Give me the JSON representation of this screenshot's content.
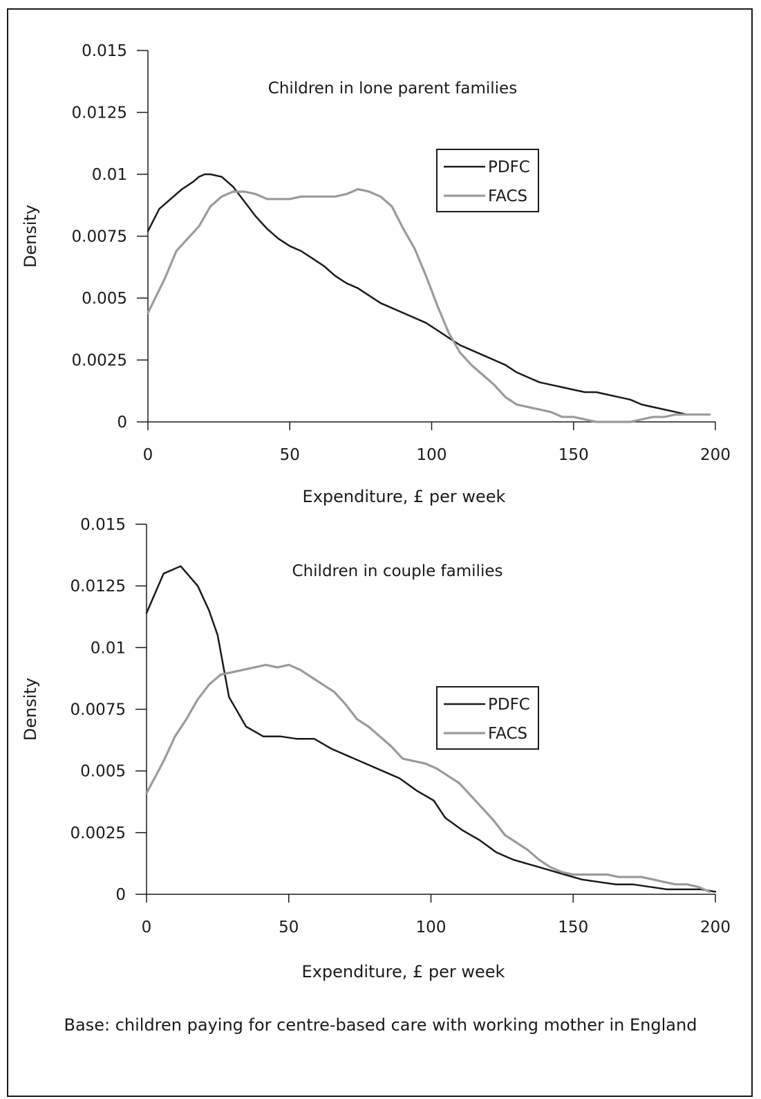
{
  "chart_data": [
    {
      "type": "line",
      "title": "Children in lone parent families",
      "xlabel": "Expenditure, £ per week",
      "ylabel": "Density",
      "xlim": [
        0,
        200
      ],
      "ylim": [
        0,
        0.015
      ],
      "xticks": [
        "0",
        "50",
        "100",
        "150",
        "200"
      ],
      "yticks": [
        "0",
        "0.0025",
        "0.005",
        "0.0075",
        "0.01",
        "0.0125",
        "0.015"
      ],
      "legend": "right",
      "grid": false,
      "series": [
        {
          "name": "PDFC",
          "color": "#1a1a1a",
          "x": [
            0,
            4,
            8,
            12,
            16,
            18,
            20,
            22,
            26,
            30,
            34,
            38,
            42,
            46,
            50,
            54,
            58,
            62,
            66,
            70,
            74,
            78,
            82,
            86,
            90,
            94,
            98,
            102,
            106,
            110,
            114,
            118,
            122,
            126,
            130,
            134,
            138,
            142,
            146,
            150,
            154,
            158,
            162,
            166,
            170,
            174,
            178,
            182,
            186,
            190
          ],
          "y": [
            0.0077,
            0.0086,
            0.009,
            0.0094,
            0.0097,
            0.0099,
            0.01,
            0.01,
            0.0099,
            0.0095,
            0.0089,
            0.0083,
            0.0078,
            0.0074,
            0.0071,
            0.0069,
            0.0066,
            0.0063,
            0.0059,
            0.0056,
            0.0054,
            0.0051,
            0.0048,
            0.0046,
            0.0044,
            0.0042,
            0.004,
            0.0037,
            0.0034,
            0.0031,
            0.0029,
            0.0027,
            0.0025,
            0.0023,
            0.002,
            0.0018,
            0.0016,
            0.0015,
            0.0014,
            0.0013,
            0.0012,
            0.0012,
            0.0011,
            0.001,
            0.0009,
            0.0007,
            0.0006,
            0.0005,
            0.0004,
            0.0003
          ]
        },
        {
          "name": "FACS",
          "color": "#9a9a9a",
          "x": [
            0,
            6,
            10,
            14,
            18,
            22,
            26,
            30,
            34,
            38,
            42,
            46,
            50,
            54,
            58,
            62,
            66,
            70,
            74,
            78,
            82,
            86,
            90,
            94,
            98,
            102,
            106,
            110,
            114,
            118,
            122,
            126,
            130,
            134,
            138,
            142,
            146,
            150,
            154,
            158,
            162,
            166,
            170,
            174,
            178,
            182,
            186,
            190,
            194,
            198
          ],
          "y": [
            0.0044,
            0.0058,
            0.0069,
            0.0074,
            0.0079,
            0.0087,
            0.0091,
            0.0093,
            0.0093,
            0.0092,
            0.009,
            0.009,
            0.009,
            0.0091,
            0.0091,
            0.0091,
            0.0091,
            0.0092,
            0.0094,
            0.0093,
            0.0091,
            0.0087,
            0.0078,
            0.007,
            0.0059,
            0.0047,
            0.0036,
            0.0028,
            0.0023,
            0.0019,
            0.0015,
            0.001,
            0.0007,
            0.0006,
            0.0005,
            0.0004,
            0.0002,
            0.0002,
            0.0001,
            0.0,
            0.0,
            0.0,
            0.0,
            0.0001,
            0.0002,
            0.0002,
            0.0003,
            0.0003,
            0.0003,
            0.0003
          ]
        }
      ]
    },
    {
      "type": "line",
      "title": "Children in couple families",
      "xlabel": "Expenditure, £ per week",
      "ylabel": "Density",
      "xlim": [
        0,
        200
      ],
      "ylim": [
        0,
        0.015
      ],
      "xticks": [
        "0",
        "50",
        "100",
        "150",
        "200"
      ],
      "yticks": [
        "0",
        "0.0025",
        "0.005",
        "0.0075",
        "0.01",
        "0.0125",
        "0.015"
      ],
      "legend": "right",
      "grid": false,
      "series": [
        {
          "name": "PDFC",
          "color": "#1a1a1a",
          "x": [
            0,
            6,
            12,
            18,
            22,
            25,
            29,
            35,
            41,
            47,
            53,
            59,
            65,
            71,
            77,
            83,
            89,
            95,
            101,
            105,
            111,
            117,
            123,
            129,
            135,
            141,
            147,
            153,
            159,
            165,
            171,
            177,
            183,
            189,
            195,
            200
          ],
          "y": [
            0.0114,
            0.013,
            0.0133,
            0.0125,
            0.0115,
            0.0105,
            0.008,
            0.0068,
            0.0064,
            0.0064,
            0.0063,
            0.0063,
            0.0059,
            0.0056,
            0.0053,
            0.005,
            0.0047,
            0.0042,
            0.0038,
            0.0031,
            0.0026,
            0.0022,
            0.0017,
            0.0014,
            0.0012,
            0.001,
            0.0008,
            0.0006,
            0.0005,
            0.0004,
            0.0004,
            0.0003,
            0.0002,
            0.0002,
            0.0002,
            0.0001
          ]
        },
        {
          "name": "FACS",
          "color": "#9a9a9a",
          "x": [
            0,
            6,
            10,
            14,
            18,
            22,
            26,
            30,
            34,
            38,
            42,
            46,
            50,
            54,
            58,
            62,
            66,
            70,
            74,
            78,
            82,
            86,
            90,
            94,
            98,
            102,
            106,
            110,
            114,
            118,
            122,
            126,
            130,
            134,
            138,
            142,
            146,
            150,
            154,
            158,
            162,
            166,
            170,
            174,
            178,
            182,
            186,
            190,
            194,
            198
          ],
          "y": [
            0.0041,
            0.0054,
            0.0064,
            0.0071,
            0.0079,
            0.0085,
            0.0089,
            0.009,
            0.0091,
            0.0092,
            0.0093,
            0.0092,
            0.0093,
            0.0091,
            0.0088,
            0.0085,
            0.0082,
            0.0077,
            0.0071,
            0.0068,
            0.0064,
            0.006,
            0.0055,
            0.0054,
            0.0053,
            0.0051,
            0.0048,
            0.0045,
            0.004,
            0.0035,
            0.003,
            0.0024,
            0.0021,
            0.0018,
            0.0014,
            0.0011,
            0.0009,
            0.0008,
            0.0008,
            0.0008,
            0.0008,
            0.0007,
            0.0007,
            0.0007,
            0.0006,
            0.0005,
            0.0004,
            0.0004,
            0.0003,
            0.0001
          ]
        }
      ]
    }
  ],
  "footnote": "Base: children paying for centre-based care with working mother in England"
}
